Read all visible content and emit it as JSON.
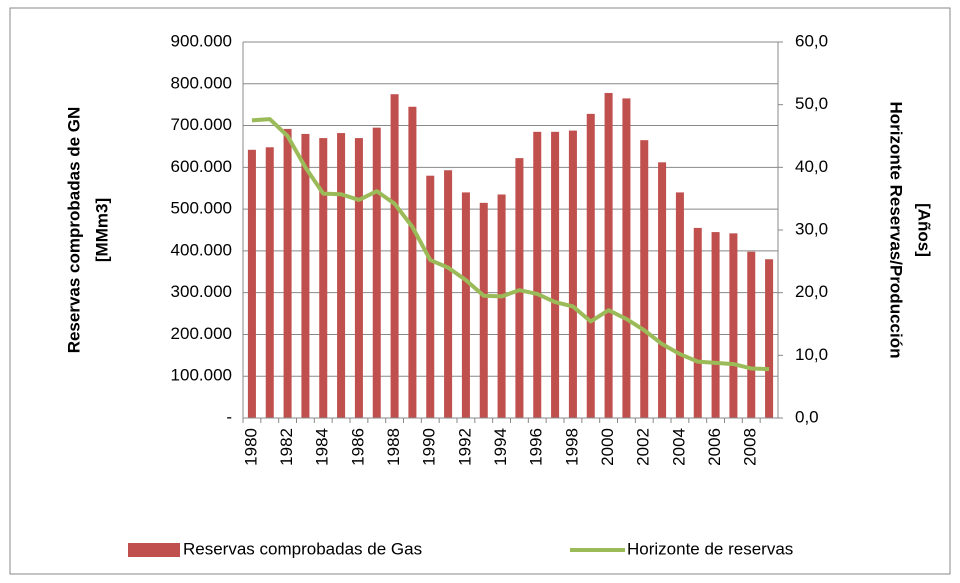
{
  "chart_data": {
    "type": "bar_line",
    "categories": [
      "1980",
      null,
      "1982",
      null,
      "1984",
      null,
      "1986",
      null,
      "1988",
      null,
      "1990",
      null,
      "1992",
      null,
      "1994",
      null,
      "1996",
      null,
      "1998",
      null,
      "2000",
      null,
      "2002",
      null,
      "2004",
      null,
      "2006",
      null,
      "2008",
      null
    ],
    "series": [
      {
        "name": "Reservas comprobadas de Gas",
        "color": "#c0504d",
        "type": "bar",
        "values": [
          642000,
          648000,
          692000,
          680000,
          670000,
          682000,
          670000,
          695000,
          775000,
          745000,
          580000,
          593000,
          540000,
          515000,
          535000,
          622000,
          685000,
          685000,
          688000,
          728000,
          778000,
          765000,
          665000,
          612000,
          540000,
          455000,
          445000,
          442000,
          398000,
          380000
        ]
      },
      {
        "name": "Horizonte de reservas",
        "color": "#9bbb59",
        "type": "line",
        "axis": "y2",
        "values": [
          47.5,
          47.7,
          45,
          40,
          35.8,
          35.7,
          34.8,
          36.2,
          34.2,
          30.5,
          25.2,
          24,
          22,
          19.5,
          19.4,
          20.4,
          19.8,
          18.5,
          17.8,
          15.4,
          17.2,
          15.8,
          14,
          11.8,
          10.2,
          9,
          8.8,
          8.6,
          7.9,
          7.8
        ]
      }
    ],
    "ylabel": [
      "Reservas comprobadas de GN",
      "[MMm3]"
    ],
    "y2label": [
      "Horizonte Reservas/Producción",
      "[Años]"
    ],
    "ylim": [
      0,
      900000
    ],
    "yticks": [
      {
        "value": 0,
        "label": "-"
      },
      {
        "value": 100000,
        "label": "100.000"
      },
      {
        "value": 200000,
        "label": "200.000"
      },
      {
        "value": 300000,
        "label": "300.000"
      },
      {
        "value": 400000,
        "label": "400.000"
      },
      {
        "value": 500000,
        "label": "500.000"
      },
      {
        "value": 600000,
        "label": "600.000"
      },
      {
        "value": 700000,
        "label": "700.000"
      },
      {
        "value": 800000,
        "label": "800.000"
      },
      {
        "value": 900000,
        "label": "900.000"
      }
    ],
    "y2lim": [
      0,
      60
    ],
    "y2ticks": [
      {
        "value": 0,
        "label": "0,0"
      },
      {
        "value": 10,
        "label": "10,0"
      },
      {
        "value": 20,
        "label": "20,0"
      },
      {
        "value": 30,
        "label": "30,0"
      },
      {
        "value": 40,
        "label": "40,0"
      },
      {
        "value": 50,
        "label": "50,0"
      },
      {
        "value": 60,
        "label": "60,0"
      }
    ],
    "grid": true,
    "legend": "bottom"
  }
}
